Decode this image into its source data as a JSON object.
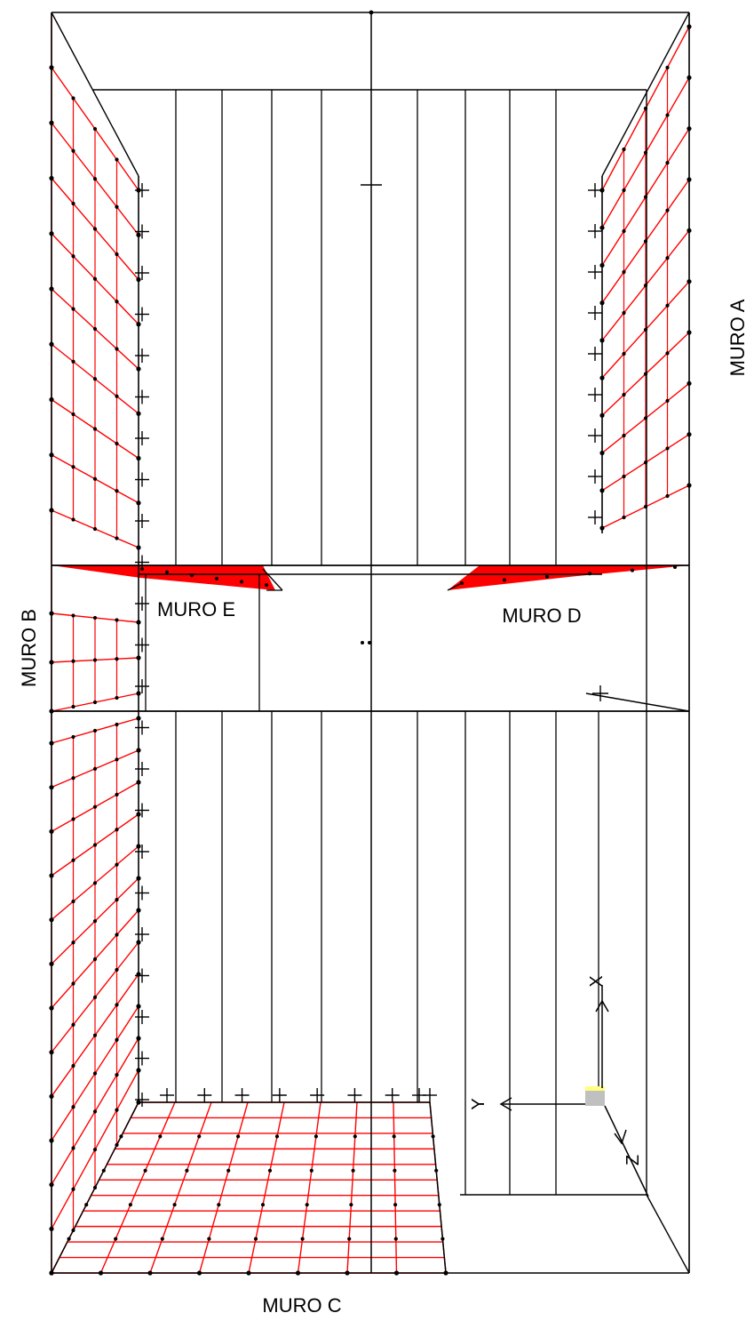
{
  "labels": {
    "muro_a": "MURO  A",
    "muro_b": "MURO  B",
    "muro_c": "MURO  C",
    "muro_d": "MURO  D",
    "muro_e": "MURO  E"
  },
  "axes": {
    "x": "X",
    "y": "Y",
    "z": "Z"
  },
  "colors": {
    "structure": "#000000",
    "mesh": "#ff0000",
    "background": "#ffffff",
    "origin_marker": "#c0c0c0",
    "origin_marker_top": "#ffff80"
  }
}
